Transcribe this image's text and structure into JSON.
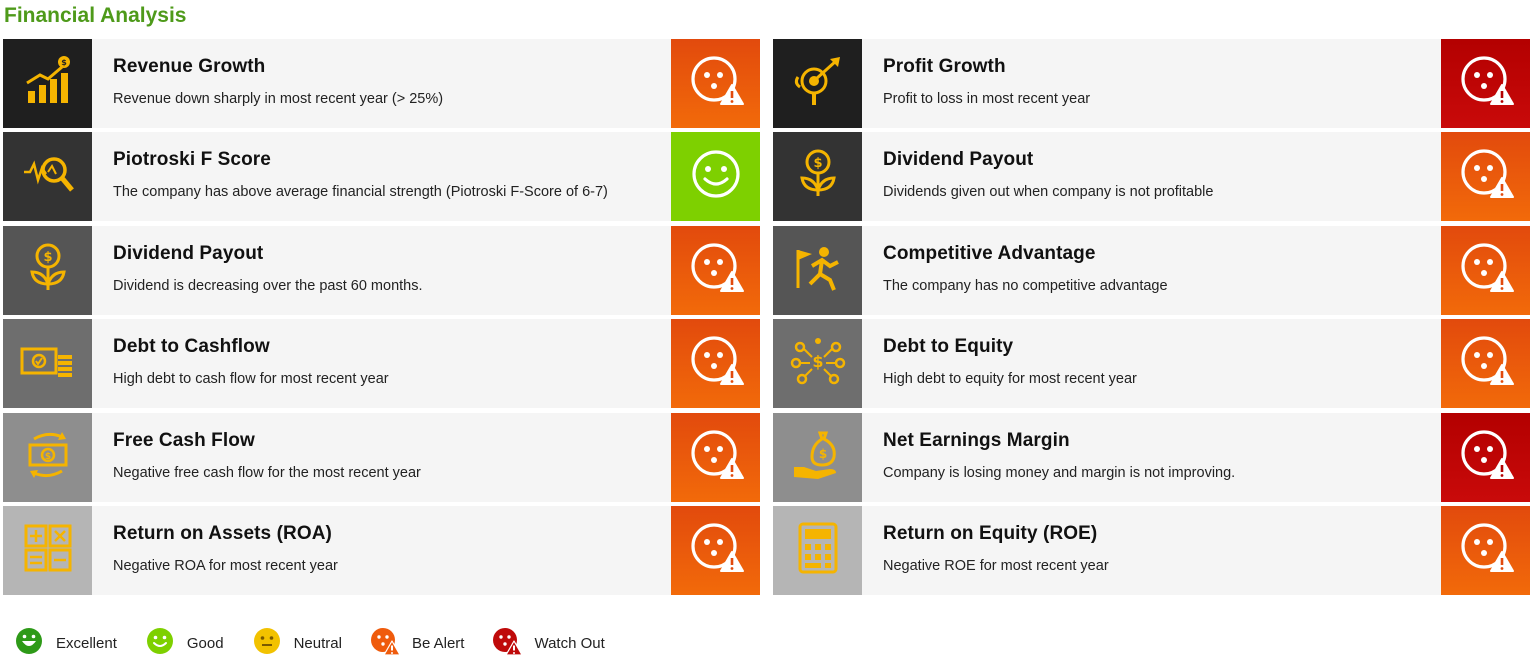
{
  "header": {
    "title": "Financial Analysis"
  },
  "cards": [
    {
      "title": "Revenue Growth",
      "desc": "Revenue down sharply in most recent year (> 25%)",
      "status": "alert",
      "icon": "revenue-growth-icon",
      "shade": "#1f1f1f"
    },
    {
      "title": "Profit Growth",
      "desc": "Profit to loss in most recent year",
      "status": "watch",
      "icon": "profit-growth-icon",
      "shade": "#1f1f1f"
    },
    {
      "title": "Piotroski F Score",
      "desc": "The company has above average financial strength (Piotroski F-Score of 6-7)",
      "status": "good",
      "icon": "magnifier-chart-icon",
      "shade": "#333333"
    },
    {
      "title": "Dividend Payout",
      "desc": "Dividends given out when company is not profitable",
      "status": "alert",
      "icon": "money-plant-icon",
      "shade": "#333333"
    },
    {
      "title": "Dividend Payout",
      "desc": "Dividend is decreasing over the past 60 months.",
      "status": "alert",
      "icon": "money-plant-icon",
      "shade": "#555555"
    },
    {
      "title": "Competitive Advantage",
      "desc": "The company has no competitive advantage",
      "status": "alert",
      "icon": "runner-flag-icon",
      "shade": "#555555"
    },
    {
      "title": "Debt to Cashflow",
      "desc": "High debt to cash flow for most recent year",
      "status": "alert",
      "icon": "cash-coins-icon",
      "shade": "#6e6e6e"
    },
    {
      "title": "Debt to Equity",
      "desc": "High debt to equity for most recent year",
      "status": "alert",
      "icon": "dollar-network-icon",
      "shade": "#6e6e6e"
    },
    {
      "title": "Free Cash Flow",
      "desc": "Negative free cash flow for the most recent year",
      "status": "alert",
      "icon": "cash-cycle-icon",
      "shade": "#8e8e8e"
    },
    {
      "title": "Net Earnings Margin",
      "desc": "Company is losing money and margin is not improving.",
      "status": "watch",
      "icon": "money-bag-hand-icon",
      "shade": "#8e8e8e"
    },
    {
      "title": "Return on Assets (ROA)",
      "desc": "Negative ROA for most recent year",
      "status": "alert",
      "icon": "calculator-symbols-icon",
      "shade": "#b5b5b5"
    },
    {
      "title": "Return on Equity (ROE)",
      "desc": "Negative ROE for most recent year",
      "status": "alert",
      "icon": "calculator-icon",
      "shade": "#b5b5b5"
    }
  ],
  "legend": [
    {
      "label": "Excellent",
      "color": "#2e9a18",
      "icon": "excellent-face-icon"
    },
    {
      "label": "Good",
      "color": "#7ed000",
      "icon": "good-face-icon"
    },
    {
      "label": "Neutral",
      "color": "#f2c200",
      "icon": "neutral-face-icon"
    },
    {
      "label": "Be Alert",
      "color": "#ef5b0c",
      "icon": "be-alert-face-icon"
    },
    {
      "label": "Watch Out",
      "color": "#bf0a0a",
      "icon": "watch-out-face-icon"
    }
  ],
  "colors": {
    "icon_gold": "#f5b400",
    "title_green": "#4e9a1a",
    "alert_orange": "#f26a0a",
    "watch_red": "#c00000",
    "good_green": "#7ed000"
  }
}
